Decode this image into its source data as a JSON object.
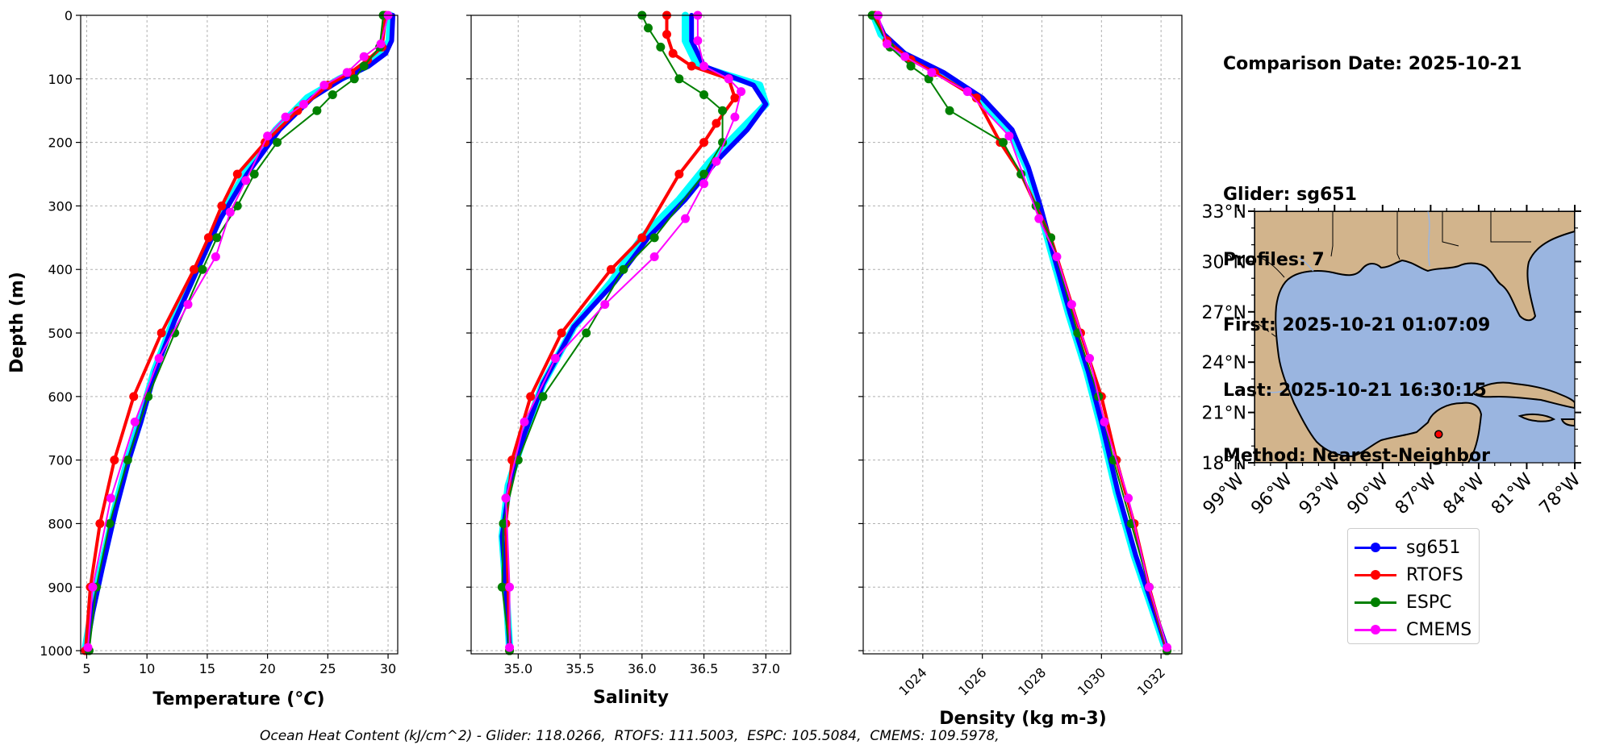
{
  "info": {
    "lines": [
      "Comparison Date: 2025-10-21",
      "",
      "Glider: sg651",
      "Profiles: 7",
      "First: 2025-10-21 01:07:09",
      "Last: 2025-10-21 16:30:15",
      "Method: Nearest-Neighbor"
    ]
  },
  "footer": "Ocean Heat Content (kJ/cm^2) - Glider: 118.0266,  RTOFS: 111.5003,  ESPC: 105.5084,  CMEMS: 109.5978,",
  "legend": [
    {
      "name": "sg651",
      "color": "#0000ff"
    },
    {
      "name": "RTOFS",
      "color": "#ff0000"
    },
    {
      "name": "ESPC",
      "color": "#008000"
    },
    {
      "name": "CMEMS",
      "color": "#ff00ff"
    }
  ],
  "chart_data": [
    {
      "type": "line",
      "xlabel": "Temperature (°C)",
      "ylabel": "Depth (m)",
      "xlim": [
        4.5,
        30.8
      ],
      "ylim": [
        1005,
        0
      ],
      "xticks": [
        5,
        10,
        15,
        20,
        25,
        30
      ],
      "yticks": [
        0,
        100,
        200,
        300,
        400,
        500,
        600,
        700,
        800,
        900,
        1000
      ],
      "grid": true,
      "series": [
        {
          "name": "glider-envelope",
          "color": "#00ffff",
          "x": [
            30.2,
            30.1,
            29.5,
            28.2,
            26.0,
            23.3,
            20.7,
            18.1,
            16.0,
            14.1,
            12.2,
            10.6,
            9.4,
            8.4,
            7.3,
            6.2,
            5.4,
            4.9
          ],
          "y": [
            0,
            40,
            60,
            80,
            100,
            130,
            180,
            250,
            320,
            400,
            480,
            560,
            640,
            700,
            780,
            870,
            940,
            995
          ]
        },
        {
          "name": "sg651",
          "color": "#0000ff",
          "x": [
            30.4,
            30.3,
            29.8,
            28.4,
            26.2,
            23.7,
            21.0,
            18.3,
            16.1,
            14.2,
            12.3,
            10.7,
            9.5,
            8.5,
            7.4,
            6.3,
            5.5,
            5.0
          ],
          "y": [
            0,
            40,
            60,
            80,
            100,
            130,
            180,
            250,
            320,
            400,
            480,
            560,
            640,
            700,
            780,
            870,
            940,
            995
          ]
        },
        {
          "name": "RTOFS",
          "color": "#ff0000",
          "x": [
            29.8,
            29.5,
            28.3,
            26.9,
            25.0,
            22.5,
            19.8,
            17.5,
            16.2,
            15.1,
            13.9,
            11.2,
            8.9,
            7.3,
            6.1,
            5.3,
            4.9
          ],
          "y": [
            0,
            50,
            70,
            90,
            110,
            150,
            200,
            250,
            300,
            350,
            400,
            500,
            600,
            700,
            800,
            900,
            1000
          ]
        },
        {
          "name": "ESPC",
          "color": "#008000",
          "x": [
            29.6,
            29.3,
            28.0,
            27.2,
            25.4,
            24.1,
            20.8,
            18.9,
            17.5,
            15.8,
            14.6,
            12.3,
            10.1,
            8.4,
            6.9,
            5.8,
            5.2
          ],
          "y": [
            0,
            50,
            80,
            100,
            125,
            150,
            200,
            250,
            300,
            350,
            400,
            500,
            600,
            700,
            800,
            900,
            1000
          ]
        },
        {
          "name": "CMEMS",
          "color": "#ff00ff",
          "x": [
            30.0,
            29.4,
            28.0,
            26.6,
            24.7,
            23.0,
            21.5,
            20.0,
            18.2,
            16.9,
            15.7,
            13.4,
            11.0,
            9.0,
            7.0,
            5.5,
            5.1
          ],
          "y": [
            0,
            45,
            65,
            90,
            110,
            140,
            160,
            190,
            260,
            310,
            380,
            455,
            540,
            640,
            760,
            900,
            995
          ]
        }
      ]
    },
    {
      "type": "line",
      "xlabel": "Salinity",
      "ylabel": "",
      "xlim": [
        34.62,
        37.2
      ],
      "ylim": [
        1005,
        0
      ],
      "xticks": [
        35.0,
        35.5,
        36.0,
        36.5,
        37.0
      ],
      "yticks": [
        0,
        100,
        200,
        300,
        400,
        500,
        600,
        700,
        800,
        900,
        1000
      ],
      "grid": true,
      "series": [
        {
          "name": "glider-envelope",
          "color": "#00ffff",
          "x": [
            36.35,
            36.35,
            36.45,
            36.95,
            37.0,
            36.8,
            36.55,
            36.3,
            36.0,
            35.75,
            35.45,
            35.2,
            35.05,
            34.92,
            34.87,
            34.9,
            34.93
          ],
          "y": [
            0,
            40,
            80,
            110,
            140,
            180,
            230,
            290,
            350,
            420,
            490,
            580,
            660,
            740,
            820,
            900,
            995
          ]
        },
        {
          "name": "sg651",
          "color": "#0000ff",
          "x": [
            36.4,
            36.4,
            36.5,
            36.9,
            37.0,
            36.85,
            36.6,
            36.35,
            36.05,
            35.78,
            35.45,
            35.2,
            35.05,
            34.93,
            34.87,
            34.9,
            34.93
          ],
          "y": [
            0,
            40,
            80,
            110,
            140,
            180,
            230,
            290,
            350,
            420,
            490,
            580,
            660,
            740,
            820,
            900,
            995
          ]
        },
        {
          "name": "RTOFS",
          "color": "#ff0000",
          "x": [
            36.2,
            36.2,
            36.25,
            36.4,
            36.7,
            36.75,
            36.6,
            36.5,
            36.3,
            36.0,
            35.75,
            35.35,
            35.1,
            34.95,
            34.9,
            34.92,
            34.93
          ],
          "y": [
            0,
            30,
            60,
            80,
            100,
            130,
            170,
            200,
            250,
            350,
            400,
            500,
            600,
            700,
            800,
            900,
            1000
          ]
        },
        {
          "name": "ESPC",
          "color": "#008000",
          "x": [
            36.0,
            36.05,
            36.15,
            36.3,
            36.5,
            36.65,
            36.65,
            36.5,
            36.1,
            35.85,
            35.55,
            35.2,
            35.0,
            34.88,
            34.87,
            34.93
          ],
          "y": [
            0,
            20,
            50,
            100,
            125,
            150,
            200,
            250,
            350,
            400,
            500,
            600,
            700,
            800,
            900,
            1000
          ]
        },
        {
          "name": "CMEMS",
          "color": "#ff00ff",
          "x": [
            36.45,
            36.45,
            36.5,
            36.7,
            36.8,
            36.75,
            36.6,
            36.5,
            36.35,
            36.1,
            35.7,
            35.3,
            35.05,
            34.9,
            34.93,
            34.93
          ],
          "y": [
            0,
            40,
            80,
            100,
            120,
            160,
            230,
            265,
            320,
            380,
            455,
            540,
            640,
            760,
            900,
            995
          ]
        }
      ]
    },
    {
      "type": "line",
      "xlabel": "Density (kg m-3)",
      "ylabel": "",
      "xlim": [
        1022.0,
        1032.7
      ],
      "ylim": [
        1005,
        0
      ],
      "xticks": [
        1024,
        1026,
        1028,
        1030,
        1032
      ],
      "yticks": [
        0,
        100,
        200,
        300,
        400,
        500,
        600,
        700,
        800,
        900,
        1000
      ],
      "grid": true,
      "series": [
        {
          "name": "glider-envelope",
          "color": "#00ffff",
          "x": [
            1022.35,
            1022.6,
            1023.3,
            1024.6,
            1025.9,
            1026.9,
            1027.5,
            1027.9,
            1028.3,
            1028.9,
            1029.5,
            1030.0,
            1030.5,
            1031.1,
            1031.6,
            1032.1
          ],
          "y": [
            0,
            30,
            60,
            90,
            130,
            180,
            240,
            300,
            370,
            470,
            560,
            650,
            750,
            850,
            920,
            990
          ]
        },
        {
          "name": "sg651",
          "color": "#0000ff",
          "x": [
            1022.4,
            1022.7,
            1023.4,
            1024.7,
            1026.0,
            1027.0,
            1027.55,
            1027.95,
            1028.35,
            1028.95,
            1029.55,
            1030.05,
            1030.55,
            1031.15,
            1031.65,
            1032.15
          ],
          "y": [
            0,
            30,
            60,
            90,
            130,
            180,
            240,
            300,
            370,
            470,
            560,
            650,
            750,
            850,
            920,
            990
          ]
        },
        {
          "name": "RTOFS",
          "color": "#ff0000",
          "x": [
            1022.4,
            1022.8,
            1023.6,
            1024.4,
            1025.8,
            1026.6,
            1027.3,
            1028.3,
            1029.3,
            1030.0,
            1030.5,
            1031.1,
            1031.6,
            1032.2
          ],
          "y": [
            0,
            40,
            70,
            90,
            130,
            200,
            250,
            350,
            500,
            600,
            700,
            800,
            900,
            1000
          ]
        },
        {
          "name": "ESPC",
          "color": "#008000",
          "x": [
            1022.3,
            1022.9,
            1023.6,
            1024.2,
            1024.9,
            1026.7,
            1027.3,
            1027.8,
            1028.3,
            1029.2,
            1029.9,
            1030.4,
            1031.0,
            1031.6,
            1032.2
          ],
          "y": [
            0,
            50,
            80,
            100,
            150,
            200,
            250,
            300,
            350,
            500,
            600,
            700,
            800,
            900,
            1000
          ]
        },
        {
          "name": "CMEMS",
          "color": "#ff00ff",
          "x": [
            1022.5,
            1022.8,
            1023.4,
            1024.3,
            1025.5,
            1026.9,
            1027.9,
            1028.5,
            1029.0,
            1029.6,
            1030.1,
            1030.9,
            1031.6,
            1032.2
          ],
          "y": [
            0,
            45,
            65,
            90,
            120,
            190,
            320,
            380,
            455,
            540,
            640,
            760,
            900,
            995
          ]
        }
      ]
    }
  ],
  "map": {
    "lat_ticks": [
      "33°N",
      "30°N",
      "27°N",
      "24°N",
      "21°N",
      "18°N"
    ],
    "lon_ticks": [
      "99°W",
      "96°W",
      "93°W",
      "90°W",
      "87°W",
      "84°W",
      "81°W",
      "78°W"
    ],
    "extent": {
      "lon": [
        -98,
        -78
      ],
      "lat": [
        18,
        33
      ]
    },
    "glider_position": {
      "lon": -86.5,
      "lat": 19.7
    },
    "land_color": "#d2b48c",
    "ocean_color": "#9ab5e0"
  }
}
